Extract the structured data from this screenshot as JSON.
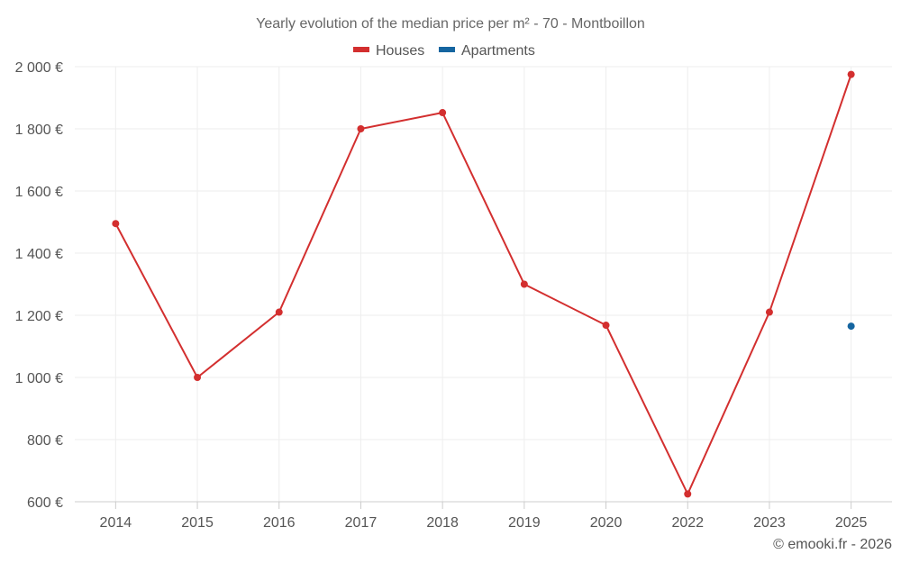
{
  "chart_data": {
    "type": "line",
    "title": "Yearly evolution of the median price per m² - 70 - Montboillon",
    "categories": [
      "2014",
      "2015",
      "2016",
      "2017",
      "2018",
      "2019",
      "2020",
      "2022",
      "2023",
      "2025"
    ],
    "series": [
      {
        "name": "Houses",
        "color": "#d32f2f",
        "values": [
          1495,
          1000,
          1210,
          1800,
          1852,
          1300,
          1168,
          625,
          1210,
          1975
        ]
      },
      {
        "name": "Apartments",
        "color": "#1565a0",
        "values": [
          null,
          null,
          null,
          null,
          null,
          null,
          null,
          null,
          null,
          1165
        ]
      }
    ],
    "yticks": [
      600,
      800,
      1000,
      1200,
      1400,
      1600,
      1800,
      2000
    ],
    "ytick_labels": [
      "600 €",
      "800 €",
      "1 000 €",
      "1 200 €",
      "1 400 €",
      "1 600 €",
      "1 800 €",
      "2 000 €"
    ],
    "ylim": [
      600,
      2000
    ],
    "xlabel": "",
    "ylabel": "",
    "legend": "top-center"
  },
  "credit": "© emooki.fr - 2026"
}
